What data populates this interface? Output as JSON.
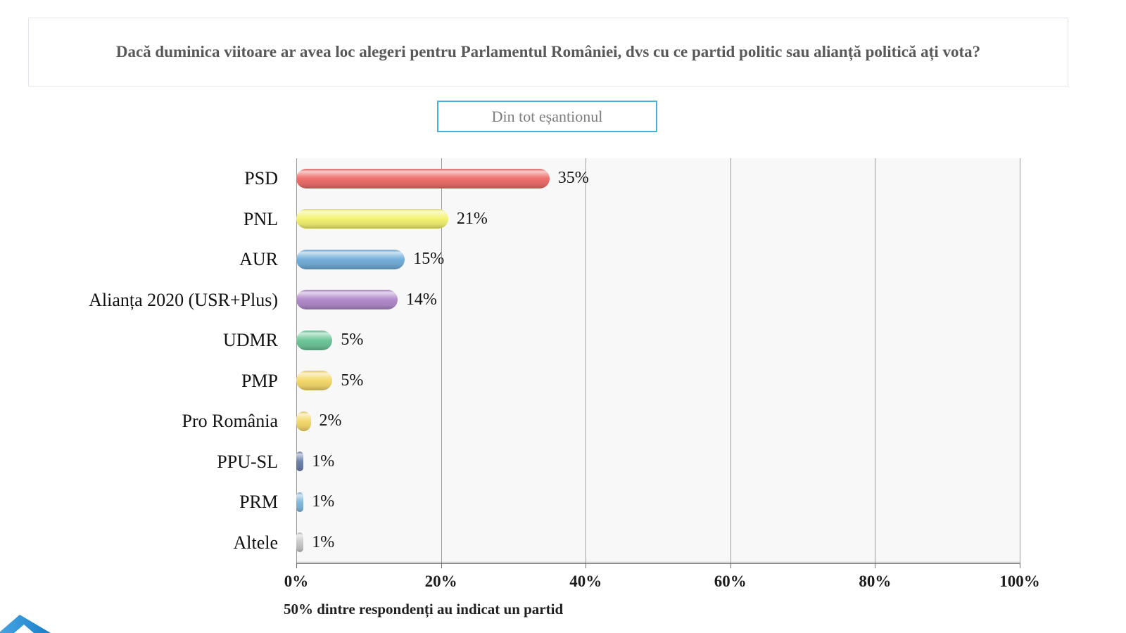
{
  "header": {
    "question": "Dacă duminica viitoare ar avea loc alegeri pentru Parlamentul României, dvs cu ce partid politic sau alianță politică ați vota?"
  },
  "sample_badge": {
    "label": "Din tot eșantionul",
    "border_color": "#46b1d7"
  },
  "chart_data": {
    "type": "bar",
    "orientation": "horizontal",
    "title": "Dacă duminica viitoare ar avea loc alegeri pentru Parlamentul României, dvs cu ce partid politic sau alianță politică ați vota?",
    "categories": [
      "PSD",
      "PNL",
      "AUR",
      "Alianța 2020 (USR+Plus)",
      "UDMR",
      "PMP",
      "Pro România",
      "PPU-SL",
      "PRM",
      "Altele"
    ],
    "values": [
      35,
      21,
      15,
      14,
      5,
      5,
      2,
      1,
      1,
      1
    ],
    "value_labels": [
      "35%",
      "21%",
      "15%",
      "14%",
      "5%",
      "5%",
      "2%",
      "1%",
      "1%",
      "1%"
    ],
    "bar_colors": [
      "#ee6f6b",
      "#f4f272",
      "#74afd9",
      "#b38ccb",
      "#6ec69a",
      "#f5d96d",
      "#f5d96d",
      "#6e82ab",
      "#83b9dc",
      "#c9c9c9"
    ],
    "xlabel": "",
    "ylabel": "",
    "xlim": [
      0,
      100
    ],
    "x_ticks": [
      "0%",
      "20%",
      "40%",
      "60%",
      "80%",
      "100%"
    ],
    "x_tick_values": [
      0,
      20,
      40,
      60,
      80,
      100
    ],
    "grid": "vertical",
    "legend": "none",
    "footnote": "50% dintre respondenți au indicat un partid"
  }
}
